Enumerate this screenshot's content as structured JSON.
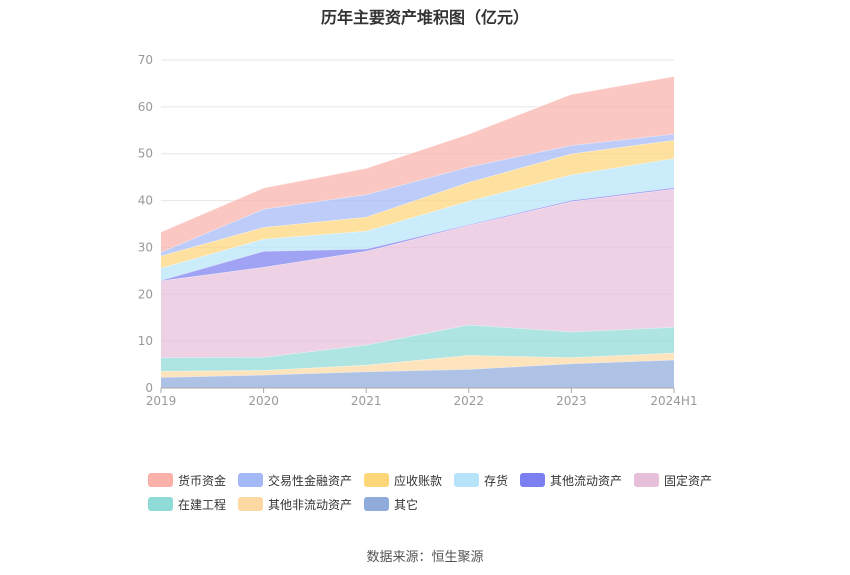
{
  "chart_data": {
    "type": "area",
    "stacked": true,
    "title": "历年主要资产堆积图（亿元）",
    "categories": [
      "2019",
      "2020",
      "2021",
      "2022",
      "2023",
      "2024H1"
    ],
    "ylim": [
      0,
      70
    ],
    "yticks": [
      0,
      10,
      20,
      30,
      40,
      50,
      60,
      70
    ],
    "grid": true,
    "legend_position": "bottom",
    "series": [
      {
        "name": "其它",
        "color": "#8fabdc",
        "values": [
          2.3,
          2.8,
          3.5,
          4.0,
          5.2,
          6.0
        ]
      },
      {
        "name": "其他非流动资产",
        "color": "#fcd9a2",
        "values": [
          1.3,
          1.0,
          1.4,
          3.0,
          1.3,
          1.5
        ]
      },
      {
        "name": "在建工程",
        "color": "#8fdbd7",
        "values": [
          2.9,
          2.8,
          4.3,
          6.5,
          5.5,
          5.5
        ]
      },
      {
        "name": "固定资产",
        "color": "#e8bfda",
        "values": [
          16.4,
          19.2,
          20.0,
          21.2,
          27.8,
          29.5
        ]
      },
      {
        "name": "其他流动资产",
        "color": "#7c7ff0",
        "values": [
          0.1,
          3.4,
          0.5,
          0.2,
          0.3,
          0.3
        ]
      },
      {
        "name": "存货",
        "color": "#b7e4fa",
        "values": [
          2.6,
          2.6,
          3.8,
          5.0,
          5.4,
          6.2
        ]
      },
      {
        "name": "应收账款",
        "color": "#fdd67a",
        "values": [
          2.6,
          2.5,
          3.0,
          4.0,
          4.5,
          3.9
        ]
      },
      {
        "name": "交易性金融资产",
        "color": "#a3b8f5",
        "values": [
          0.8,
          3.9,
          4.8,
          3.3,
          1.8,
          1.3
        ]
      },
      {
        "name": "货币资金",
        "color": "#f9b1aa",
        "values": [
          4.3,
          4.5,
          5.6,
          7.0,
          10.9,
          12.3
        ]
      }
    ],
    "legend_order": [
      "货币资金",
      "交易性金融资产",
      "应收账款",
      "存货",
      "其他流动资产",
      "固定资产",
      "在建工程",
      "其他非流动资产",
      "其它"
    ]
  },
  "source_text": "数据来源：恒生聚源"
}
